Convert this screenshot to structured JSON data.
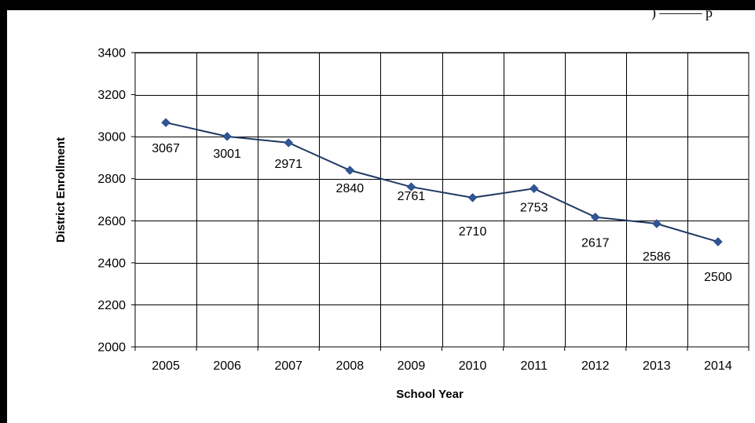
{
  "top_corner_text": ") ——— p",
  "chart_data": {
    "type": "line",
    "title": "",
    "xlabel": "School Year",
    "ylabel": "District Enrollment",
    "categories": [
      "2005",
      "2006",
      "2007",
      "2008",
      "2009",
      "2010",
      "2011",
      "2012",
      "2013",
      "2014"
    ],
    "values": [
      3067,
      3001,
      2971,
      2840,
      2761,
      2710,
      2753,
      2617,
      2586,
      2500
    ],
    "ylim": [
      2000,
      3400
    ],
    "yticks": [
      2000,
      2200,
      2400,
      2600,
      2800,
      3000,
      3200,
      3400
    ],
    "grid": true,
    "legend": "none",
    "series_color": "#1F3864",
    "marker_color": "#2E5597",
    "marker": "diamond"
  }
}
